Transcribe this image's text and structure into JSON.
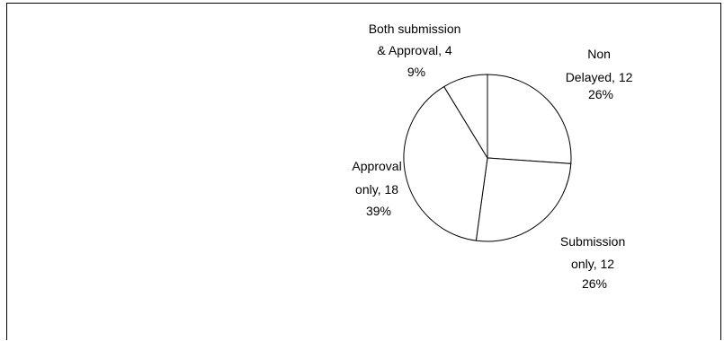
{
  "chart_data": {
    "type": "pie",
    "title": "",
    "slices": [
      {
        "label_lines": [
          "Non",
          "Delayed, 12",
          "26%"
        ],
        "name": "Non Delayed",
        "value": 12,
        "percent": 26
      },
      {
        "label_lines": [
          "Submission",
          "only, 12",
          "26%"
        ],
        "name": "Submission only",
        "value": 12,
        "percent": 26
      },
      {
        "label_lines": [
          "Approval",
          "only, 18",
          "39%"
        ],
        "name": "Approval only",
        "value": 18,
        "percent": 39
      },
      {
        "label_lines": [
          "Both submission",
          "& Approval, 4",
          "9%"
        ],
        "name": "Both submission & Approval",
        "value": 4,
        "percent": 9
      }
    ],
    "start_angle": "top",
    "direction": "clockwise",
    "colors": {
      "fill": "#ffffff",
      "stroke": "#000000"
    },
    "legend": "none"
  }
}
